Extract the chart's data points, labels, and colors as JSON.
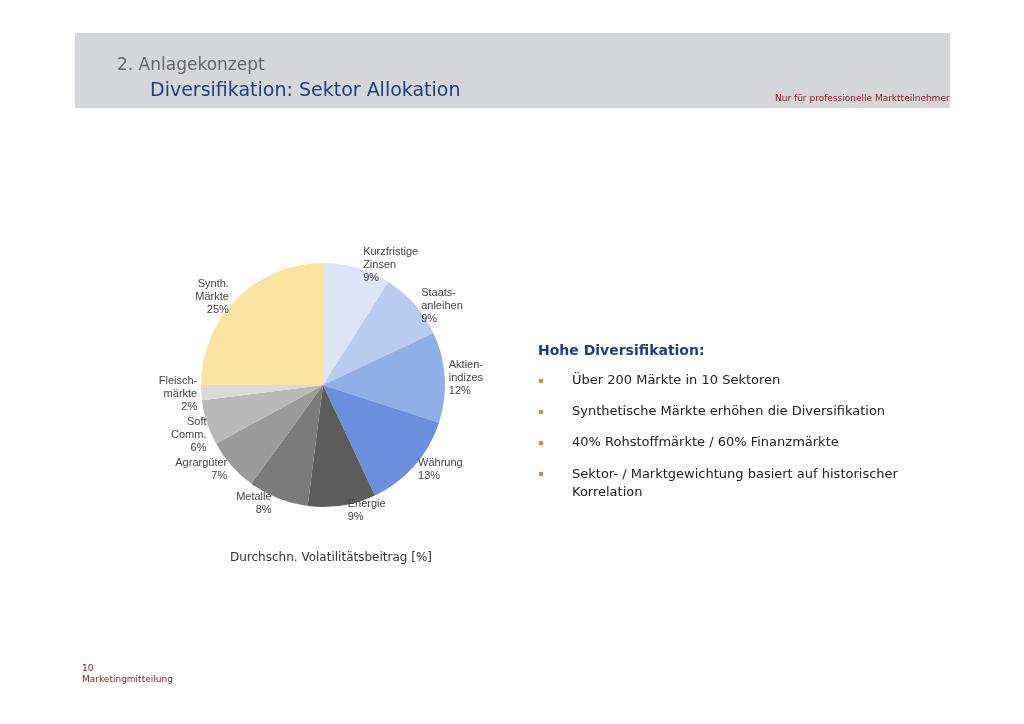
{
  "chart_data": {
    "type": "pie",
    "title": "Diversifikation: Sektor Allokation",
    "subtitle": "2. Anlagekonzept",
    "categories": [
      "Kurzfristige\nZinsen",
      "Staats-\nanleihen",
      "Aktien-\nindizes",
      "Währung",
      "Energie",
      "Metalle",
      "Agrargüter",
      "Soft\nComm.",
      "Fleisch-\nmärkte",
      "Synth.\nMärkte"
    ],
    "values": [
      9,
      9,
      12,
      13,
      9,
      8,
      7,
      6,
      2,
      25
    ],
    "value_labels": [
      "9%",
      "9%",
      "12%",
      "13%",
      "9%",
      "8%",
      "7%",
      "6%",
      "2%",
      "25%"
    ],
    "colors": [
      "#dbe5f6",
      "#b9cbee",
      "#8fafe6",
      "#6b8fdc",
      "#5c5c5c",
      "#7b7b7b",
      "#9b9b9b",
      "#b9b9b9",
      "#dadada",
      "#fbe3a0"
    ],
    "legend": false,
    "annotations": [
      "Nur für professionelle Marktteilnehmer",
      "Durchschn. Volatilitätsbeitrag [%]",
      "Hohe Diversifikation:",
      "Über 200 Märkte in 10 Sektoren",
      "Synthetische Märkte erhöhen die Diversifikation",
      "40% Rohstoffmärkte / 60% Finanzmärkte",
      "Sektor- / Marktgewichtung basiert auf historischer Korrelation",
      "10",
      "Marketingmitteilung"
    ]
  }
}
